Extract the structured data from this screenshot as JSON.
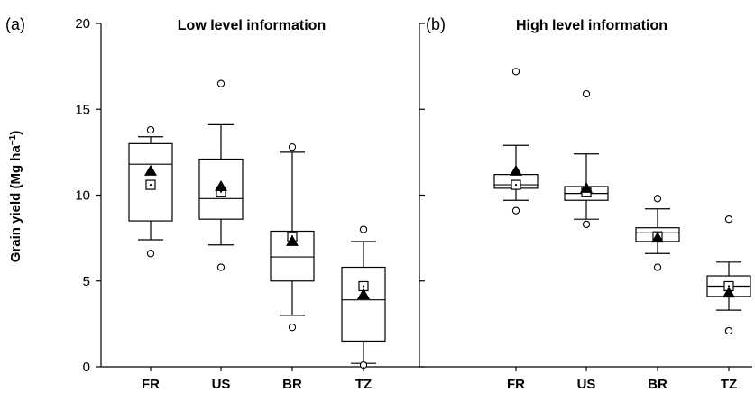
{
  "chart_data": {
    "type": "box",
    "ylabel": "Grain yield (Mg ha",
    "ylabel_sup": "−1",
    "ylabel_close": ")",
    "ylim": [
      0,
      20
    ],
    "yticks": [
      0,
      5,
      10,
      15,
      20
    ],
    "categories": [
      "FR",
      "US",
      "BR",
      "TZ"
    ],
    "legend": "none",
    "panels": [
      {
        "tag": "(a)",
        "title": "Low level information",
        "boxes": [
          {
            "category": "FR",
            "p10": 7.4,
            "q1": 8.5,
            "median": 11.8,
            "q3": 13.0,
            "p90": 13.4,
            "outliers": [
              6.6,
              13.8
            ],
            "mean": 11.4,
            "observed": 10.6
          },
          {
            "category": "US",
            "p10": 7.1,
            "q1": 8.6,
            "median": 9.8,
            "q3": 12.1,
            "p90": 14.1,
            "outliers": [
              5.8,
              16.5
            ],
            "mean": 10.5,
            "observed": 10.2
          },
          {
            "category": "BR",
            "p10": 3.0,
            "q1": 5.0,
            "median": 6.4,
            "q3": 7.9,
            "p90": 12.5,
            "outliers": [
              2.3,
              12.8
            ],
            "mean": 7.3,
            "observed": 7.6
          },
          {
            "category": "TZ",
            "p10": 0.2,
            "q1": 1.5,
            "median": 3.9,
            "q3": 5.8,
            "p90": 7.3,
            "outliers": [
              0.1,
              8.0
            ],
            "mean": 4.2,
            "observed": 4.7
          }
        ]
      },
      {
        "tag": "(b)",
        "title": "High level information",
        "boxes": [
          {
            "category": "FR",
            "p10": 9.7,
            "q1": 10.4,
            "median": 10.6,
            "q3": 11.2,
            "p90": 12.9,
            "outliers": [
              9.1,
              17.2
            ],
            "mean": 11.4,
            "observed": 10.6
          },
          {
            "category": "US",
            "p10": 8.6,
            "q1": 9.7,
            "median": 10.1,
            "q3": 10.5,
            "p90": 12.4,
            "outliers": [
              8.3,
              15.9
            ],
            "mean": 10.4,
            "observed": 10.2
          },
          {
            "category": "BR",
            "p10": 6.6,
            "q1": 7.3,
            "median": 7.8,
            "q3": 8.1,
            "p90": 9.2,
            "outliers": [
              5.8,
              9.8
            ],
            "mean": 7.5,
            "observed": 7.6
          },
          {
            "category": "TZ",
            "p10": 3.3,
            "q1": 4.1,
            "median": 4.7,
            "q3": 5.3,
            "p90": 6.1,
            "outliers": [
              2.1,
              8.6
            ],
            "mean": 4.3,
            "observed": 4.7
          }
        ]
      }
    ]
  }
}
